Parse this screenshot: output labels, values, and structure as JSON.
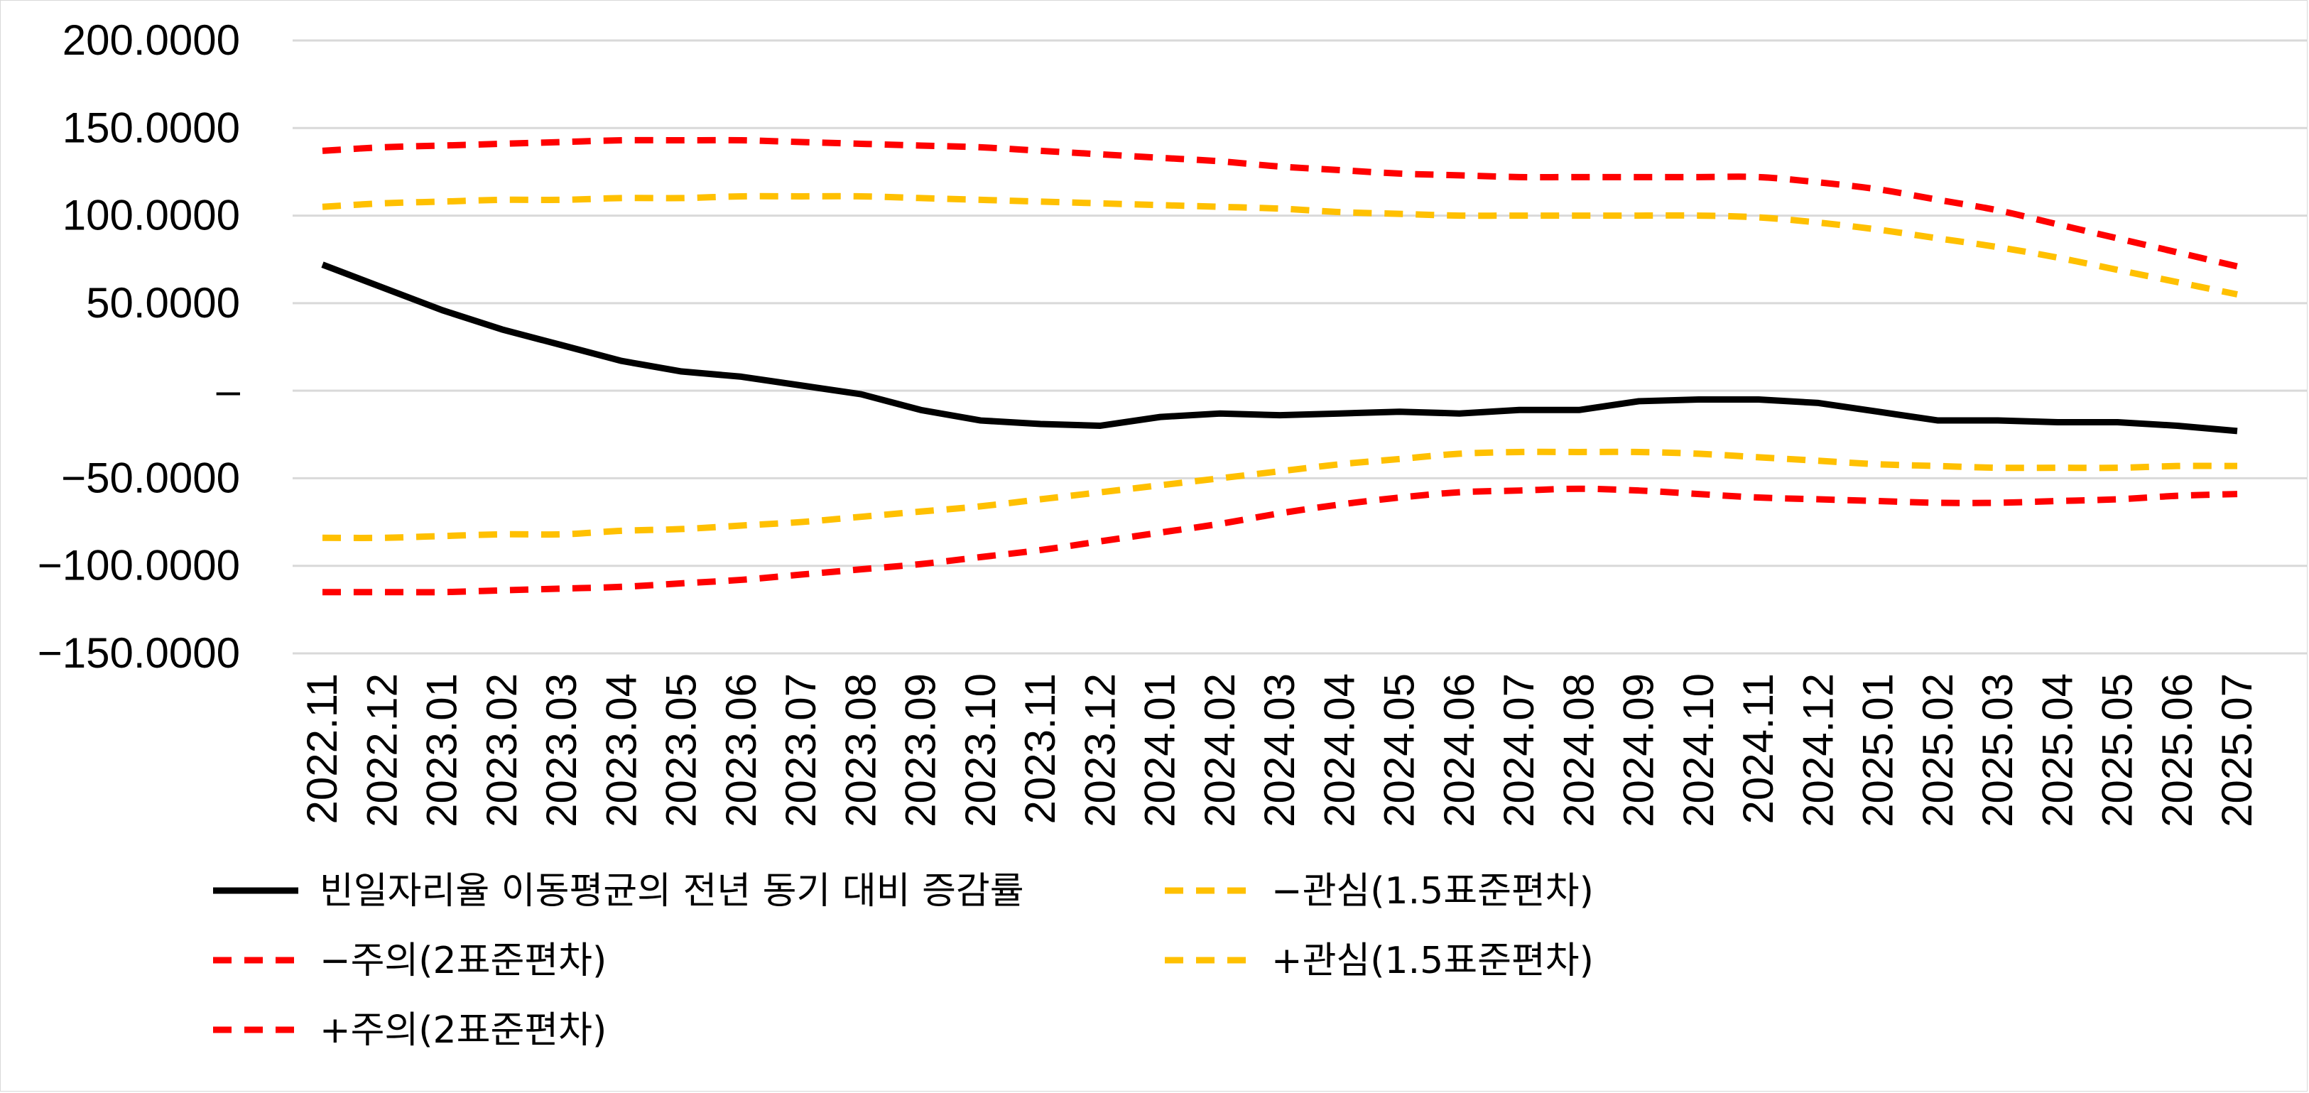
{
  "chart_data": {
    "type": "line",
    "x": [
      "2022.11",
      "2022.12",
      "2023.01",
      "2023.02",
      "2023.03",
      "2023.04",
      "2023.05",
      "2023.06",
      "2023.07",
      "2023.08",
      "2023.09",
      "2023.10",
      "2023.11",
      "2023.12",
      "2024.01",
      "2024.02",
      "2024.03",
      "2024.04",
      "2024.05",
      "2024.06",
      "2024.07",
      "2024.08",
      "2024.09",
      "2024.10",
      "2024.11",
      "2024.12",
      "2025.01",
      "2025.02",
      "2025.03",
      "2025.04",
      "2025.05",
      "2025.06",
      "2025.07"
    ],
    "y_ticks": [
      "200.0000",
      "150.0000",
      "100.0000",
      "50.0000",
      "–",
      "−50.0000",
      "−100.0000",
      "−150.0000"
    ],
    "ylim": [
      -150,
      200
    ],
    "grid": true,
    "legend_position": "bottom",
    "series": [
      {
        "name": "빈일자리율 이동평균의 전년 동기 대비 증감률",
        "color": "#000000",
        "style": "solid",
        "values": [
          72,
          59,
          46,
          35,
          26,
          17,
          11,
          8,
          3,
          -2,
          -11,
          -17,
          -19,
          -20,
          -15,
          -13,
          -14,
          -13,
          -12,
          -13,
          -11,
          -11,
          -6,
          -5,
          -5,
          -7,
          -12,
          -17,
          -17,
          -18,
          -18,
          -20,
          -23
        ]
      },
      {
        "name": "−관심(1.5표준편차)",
        "color": "#FFC000",
        "style": "dashed",
        "values": [
          -84,
          -84,
          -83,
          -82,
          -82,
          -80,
          -79,
          -77,
          -75,
          -72,
          -69,
          -66,
          -62,
          -58,
          -54,
          -50,
          -46,
          -42,
          -39,
          -36,
          -35,
          -35,
          -35,
          -36,
          -38,
          -40,
          -42,
          -43,
          -44,
          -44,
          -44,
          -43,
          -43
        ]
      },
      {
        "name": "−주의(2표준편차)",
        "color": "#FF0000",
        "style": "dashed",
        "values": [
          -115,
          -115,
          -115,
          -114,
          -113,
          -112,
          -110,
          -108,
          -105,
          -102,
          -99,
          -95,
          -91,
          -86,
          -81,
          -76,
          -70,
          -65,
          -61,
          -58,
          -57,
          -56,
          -57,
          -59,
          -61,
          -62,
          -63,
          -64,
          -64,
          -63,
          -62,
          -60,
          -59
        ]
      },
      {
        "name": "+관심(1.5표준편차)",
        "color": "#FFC000",
        "style": "dashed",
        "values": [
          105,
          107,
          108,
          109,
          109,
          110,
          110,
          111,
          111,
          111,
          110,
          109,
          108,
          107,
          106,
          105,
          104,
          102,
          101,
          100,
          100,
          100,
          100,
          100,
          99,
          96,
          92,
          87,
          82,
          76,
          69,
          62,
          55
        ]
      },
      {
        "name": "+주의(2표준편차)",
        "color": "#FF0000",
        "style": "dashed",
        "values": [
          137,
          139,
          140,
          141,
          142,
          143,
          143,
          143,
          142,
          141,
          140,
          139,
          137,
          135,
          133,
          131,
          128,
          126,
          124,
          123,
          122,
          122,
          122,
          122,
          122,
          119,
          115,
          109,
          103,
          95,
          87,
          79,
          71
        ]
      }
    ]
  },
  "legend": [
    {
      "label": "빈일자리율 이동평균의 전년 동기 대비 증감률",
      "color": "#000000",
      "style": "solid"
    },
    {
      "label": "−관심(1.5표준편차)",
      "color": "#FFC000",
      "style": "dashed"
    },
    {
      "label": "−주의(2표준편차)",
      "color": "#FF0000",
      "style": "dashed"
    },
    {
      "label": "+관심(1.5표준편차)",
      "color": "#FFC000",
      "style": "dashed"
    },
    {
      "label": "+주의(2표준편차)",
      "color": "#FF0000",
      "style": "dashed"
    }
  ]
}
